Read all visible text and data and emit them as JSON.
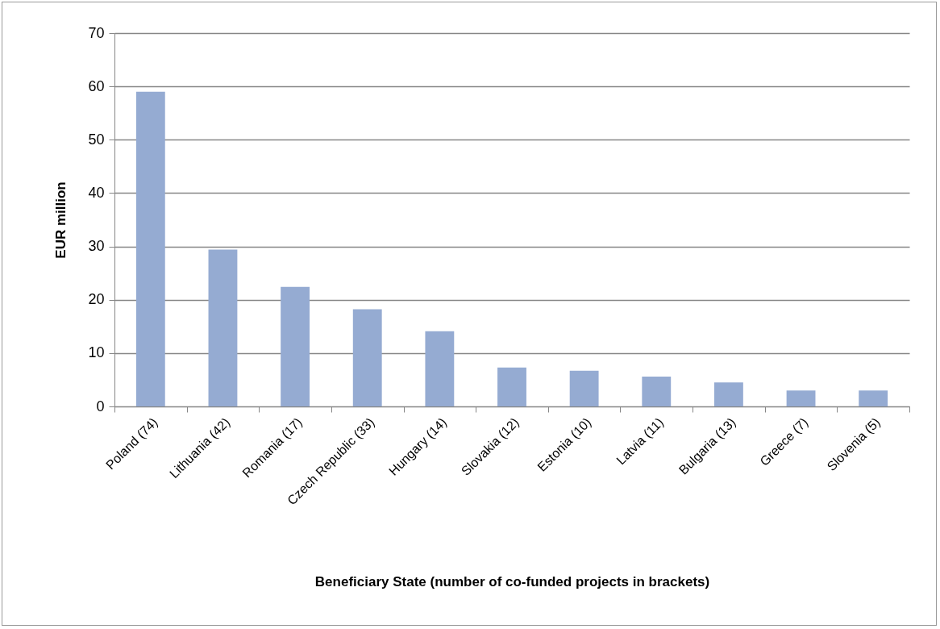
{
  "chart_data": {
    "type": "bar",
    "xlabel": "Beneficiary State (number of co-funded projects in brackets)",
    "ylabel": "EUR million",
    "categories": [
      "Poland (74)",
      "Lithuania (42)",
      "Romania (17)",
      "Czech Republic (33)",
      "Hungary (14)",
      "Slovakia (12)",
      "Estonia (10)",
      "Latvia (11)",
      "Bulgaria (13)",
      "Greece (7)",
      "Slovenia (5)"
    ],
    "values": [
      59.0,
      29.4,
      22.4,
      18.2,
      14.1,
      7.3,
      6.7,
      5.6,
      4.5,
      3.0,
      3.0
    ],
    "color": "#95abd2",
    "ylim": [
      0,
      70
    ],
    "yticks": [
      0,
      10,
      20,
      30,
      40,
      50,
      60,
      70
    ],
    "grid": "y"
  }
}
